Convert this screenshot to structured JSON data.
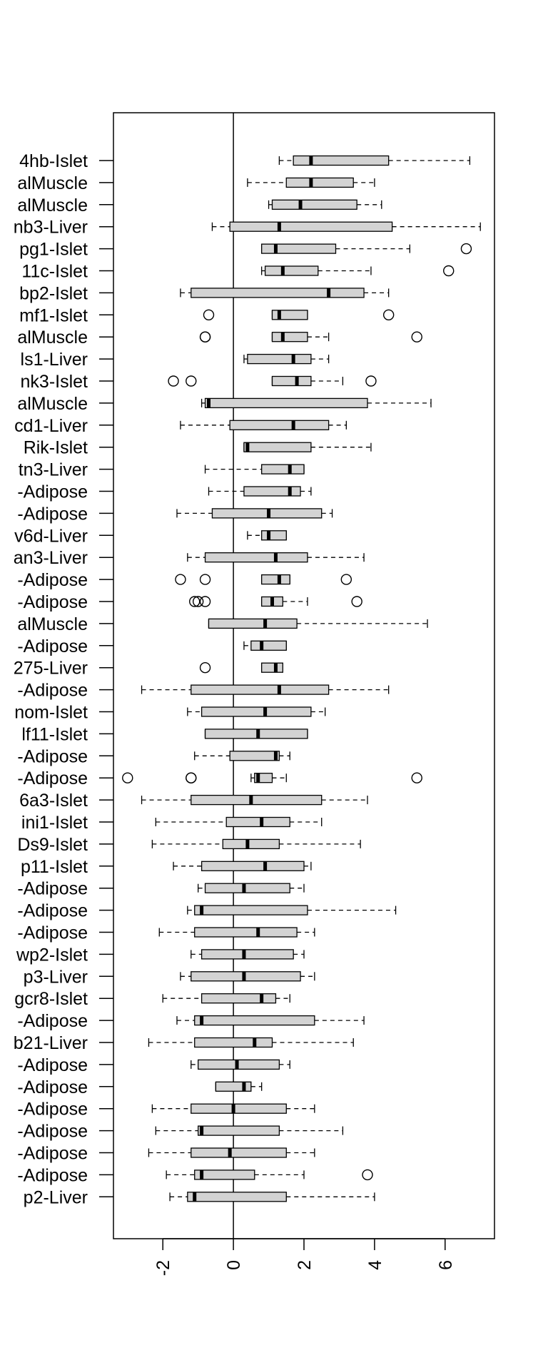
{
  "chart_data": {
    "type": "boxplot",
    "orientation": "horizontal",
    "xlim": [
      -3.4,
      7.4
    ],
    "x_ticks": [
      -2,
      0,
      2,
      4,
      6
    ],
    "reference_line": 0,
    "grid": false,
    "categories": [
      "4hb-Islet",
      "alMuscle",
      "alMuscle",
      "nb3-Liver",
      "pg1-Islet",
      "11c-Islet",
      "bp2-Islet",
      "mf1-Islet",
      "alMuscle",
      "ls1-Liver",
      "nk3-Islet",
      "alMuscle",
      "cd1-Liver",
      "Rik-Islet",
      "tn3-Liver",
      "-Adipose",
      "-Adipose",
      "v6d-Liver",
      "an3-Liver",
      "-Adipose",
      "-Adipose",
      "alMuscle",
      "-Adipose",
      "275-Liver",
      "-Adipose",
      "nom-Islet",
      "lf11-Islet",
      "-Adipose",
      "-Adipose",
      "6a3-Islet",
      "ini1-Islet",
      "Ds9-Islet",
      "p11-Islet",
      "-Adipose",
      "-Adipose",
      "-Adipose",
      "wp2-Islet",
      "p3-Liver",
      "gcr8-Islet",
      "-Adipose",
      "b21-Liver",
      "-Adipose",
      "-Adipose",
      "-Adipose",
      "-Adipose",
      "-Adipose",
      "-Adipose",
      "p2-Liver"
    ],
    "boxes": [
      {
        "min": 1.3,
        "q1": 1.7,
        "median": 2.2,
        "q3": 4.4,
        "max": 6.7,
        "outliers": []
      },
      {
        "min": 0.4,
        "q1": 1.5,
        "median": 2.2,
        "q3": 3.4,
        "max": 4.0,
        "outliers": []
      },
      {
        "min": 1.0,
        "q1": 1.1,
        "median": 1.9,
        "q3": 3.5,
        "max": 4.2,
        "outliers": []
      },
      {
        "min": -0.6,
        "q1": -0.1,
        "median": 1.3,
        "q3": 4.5,
        "max": 7.0,
        "outliers": []
      },
      {
        "min": 0.8,
        "q1": 0.8,
        "median": 1.2,
        "q3": 2.9,
        "max": 5.0,
        "outliers": [
          6.6
        ]
      },
      {
        "min": 0.8,
        "q1": 0.9,
        "median": 1.4,
        "q3": 2.4,
        "max": 3.9,
        "outliers": [
          6.1
        ]
      },
      {
        "min": -1.5,
        "q1": -1.2,
        "median": 2.7,
        "q3": 3.7,
        "max": 4.4,
        "outliers": []
      },
      {
        "min": 1.1,
        "q1": 1.1,
        "median": 1.3,
        "q3": 2.1,
        "max": 2.1,
        "outliers": [
          -0.7,
          4.4
        ]
      },
      {
        "min": 1.1,
        "q1": 1.1,
        "median": 1.4,
        "q3": 2.1,
        "max": 2.7,
        "outliers": [
          -0.8,
          -0.8,
          5.2
        ]
      },
      {
        "min": 0.3,
        "q1": 0.4,
        "median": 1.7,
        "q3": 2.2,
        "max": 2.7,
        "outliers": []
      },
      {
        "min": 1.1,
        "q1": 1.1,
        "median": 1.8,
        "q3": 2.2,
        "max": 3.1,
        "outliers": [
          -1.7,
          -1.2,
          3.9
        ]
      },
      {
        "min": -0.9,
        "q1": -0.8,
        "median": -0.7,
        "q3": 3.8,
        "max": 5.6,
        "outliers": []
      },
      {
        "min": -1.5,
        "q1": -0.1,
        "median": 1.7,
        "q3": 2.7,
        "max": 3.2,
        "outliers": []
      },
      {
        "min": 0.3,
        "q1": 0.3,
        "median": 0.4,
        "q3": 2.2,
        "max": 3.9,
        "outliers": []
      },
      {
        "min": -0.8,
        "q1": 0.8,
        "median": 1.6,
        "q3": 2.0,
        "max": 2.0,
        "outliers": []
      },
      {
        "min": -0.7,
        "q1": 0.3,
        "median": 1.6,
        "q3": 1.9,
        "max": 2.2,
        "outliers": []
      },
      {
        "min": -1.6,
        "q1": -0.6,
        "median": 1.0,
        "q3": 2.5,
        "max": 2.8,
        "outliers": []
      },
      {
        "min": 0.4,
        "q1": 0.8,
        "median": 1.0,
        "q3": 1.5,
        "max": 1.5,
        "outliers": []
      },
      {
        "min": -1.3,
        "q1": -0.8,
        "median": 1.2,
        "q3": 2.1,
        "max": 3.7,
        "outliers": []
      },
      {
        "min": 0.8,
        "q1": 0.8,
        "median": 1.3,
        "q3": 1.6,
        "max": 1.6,
        "outliers": [
          -1.5,
          -0.8,
          3.2
        ]
      },
      {
        "min": 0.8,
        "q1": 0.8,
        "median": 1.1,
        "q3": 1.4,
        "max": 2.1,
        "outliers": [
          -1.1,
          -1.0,
          -0.8,
          3.5
        ]
      },
      {
        "min": -0.7,
        "q1": -0.7,
        "median": 0.9,
        "q3": 1.8,
        "max": 5.5,
        "outliers": []
      },
      {
        "min": 0.3,
        "q1": 0.5,
        "median": 0.8,
        "q3": 1.5,
        "max": 1.5,
        "outliers": []
      },
      {
        "min": 0.8,
        "q1": 0.8,
        "median": 1.2,
        "q3": 1.4,
        "max": 1.4,
        "outliers": [
          -0.8
        ]
      },
      {
        "min": -2.6,
        "q1": -1.2,
        "median": 1.3,
        "q3": 2.7,
        "max": 4.4,
        "outliers": []
      },
      {
        "min": -1.3,
        "q1": -0.9,
        "median": 0.9,
        "q3": 2.2,
        "max": 2.6,
        "outliers": []
      },
      {
        "min": -0.8,
        "q1": -0.8,
        "median": 0.7,
        "q3": 2.1,
        "max": 2.1,
        "outliers": []
      },
      {
        "min": -1.1,
        "q1": -0.1,
        "median": 1.2,
        "q3": 1.3,
        "max": 1.6,
        "outliers": []
      },
      {
        "min": 0.5,
        "q1": 0.6,
        "median": 0.7,
        "q3": 1.1,
        "max": 1.5,
        "outliers": [
          -3.0,
          -1.2,
          -1.2,
          5.2
        ]
      },
      {
        "min": -2.6,
        "q1": -1.2,
        "median": 0.5,
        "q3": 2.5,
        "max": 3.8,
        "outliers": []
      },
      {
        "min": -2.2,
        "q1": -0.2,
        "median": 0.8,
        "q3": 1.6,
        "max": 2.5,
        "outliers": []
      },
      {
        "min": -2.3,
        "q1": -0.3,
        "median": 0.4,
        "q3": 1.3,
        "max": 3.6,
        "outliers": []
      },
      {
        "min": -1.7,
        "q1": -0.9,
        "median": 0.9,
        "q3": 2.0,
        "max": 2.2,
        "outliers": []
      },
      {
        "min": -1.0,
        "q1": -0.8,
        "median": 0.3,
        "q3": 1.6,
        "max": 2.0,
        "outliers": []
      },
      {
        "min": -1.3,
        "q1": -1.1,
        "median": -0.9,
        "q3": 2.1,
        "max": 4.6,
        "outliers": []
      },
      {
        "min": -2.1,
        "q1": -1.1,
        "median": 0.7,
        "q3": 1.8,
        "max": 2.3,
        "outliers": []
      },
      {
        "min": -1.2,
        "q1": -0.9,
        "median": 0.3,
        "q3": 1.7,
        "max": 2.0,
        "outliers": []
      },
      {
        "min": -1.5,
        "q1": -1.2,
        "median": 0.3,
        "q3": 1.9,
        "max": 2.3,
        "outliers": []
      },
      {
        "min": -2.0,
        "q1": -0.9,
        "median": 0.8,
        "q3": 1.2,
        "max": 1.6,
        "outliers": []
      },
      {
        "min": -1.6,
        "q1": -1.1,
        "median": -0.9,
        "q3": 2.3,
        "max": 3.7,
        "outliers": []
      },
      {
        "min": -2.4,
        "q1": -1.1,
        "median": 0.6,
        "q3": 1.1,
        "max": 3.4,
        "outliers": []
      },
      {
        "min": -1.2,
        "q1": -1.0,
        "median": 0.1,
        "q3": 1.3,
        "max": 1.6,
        "outliers": []
      },
      {
        "min": -0.5,
        "q1": -0.5,
        "median": 0.3,
        "q3": 0.5,
        "max": 0.8,
        "outliers": []
      },
      {
        "min": -2.3,
        "q1": -1.2,
        "median": 0.0,
        "q3": 1.5,
        "max": 2.3,
        "outliers": []
      },
      {
        "min": -2.2,
        "q1": -1.0,
        "median": -0.9,
        "q3": 1.3,
        "max": 3.1,
        "outliers": []
      },
      {
        "min": -2.4,
        "q1": -1.2,
        "median": -0.1,
        "q3": 1.5,
        "max": 2.3,
        "outliers": []
      },
      {
        "min": -1.9,
        "q1": -1.1,
        "median": -0.9,
        "q3": 0.6,
        "max": 2.0,
        "outliers": [
          3.8
        ]
      },
      {
        "min": -1.8,
        "q1": -1.3,
        "median": -1.1,
        "q3": 1.5,
        "max": 4.0,
        "outliers": []
      }
    ]
  }
}
